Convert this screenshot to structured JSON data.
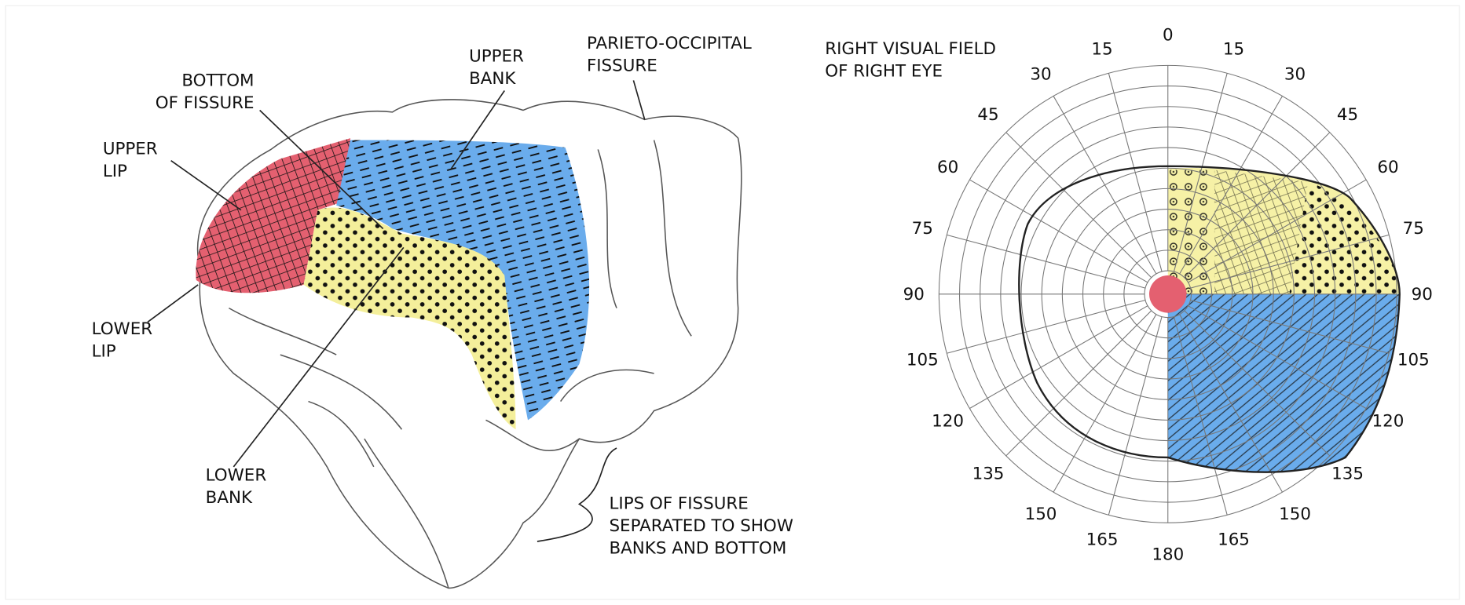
{
  "brain": {
    "labels": [
      {
        "lines": [
          "BOTTOM",
          "OF FISSURE"
        ]
      },
      {
        "lines": [
          "UPPER",
          "BANK"
        ]
      },
      {
        "lines": [
          "PARIETO-OCCIPITAL",
          "FISSURE"
        ]
      },
      {
        "lines": [
          "UPPER",
          "LIP"
        ]
      },
      {
        "lines": [
          "LOWER",
          "LIP"
        ]
      },
      {
        "lines": [
          "LOWER",
          "BANK"
        ]
      },
      {
        "lines": [
          "LIPS OF FISSURE",
          "SEPARATED TO SHOW",
          "BANKS AND BOTTOM"
        ]
      }
    ]
  },
  "visual_field": {
    "title": [
      "RIGHT VISUAL FIELD",
      "OF RIGHT EYE"
    ],
    "top": "0",
    "bottom": "180",
    "right": [
      "15",
      "30",
      "45",
      "60",
      "75",
      "90",
      "105",
      "120",
      "135",
      "150",
      "165"
    ],
    "left": [
      "15",
      "30",
      "45",
      "60",
      "75",
      "90",
      "105",
      "120",
      "135",
      "150",
      "165"
    ]
  }
}
